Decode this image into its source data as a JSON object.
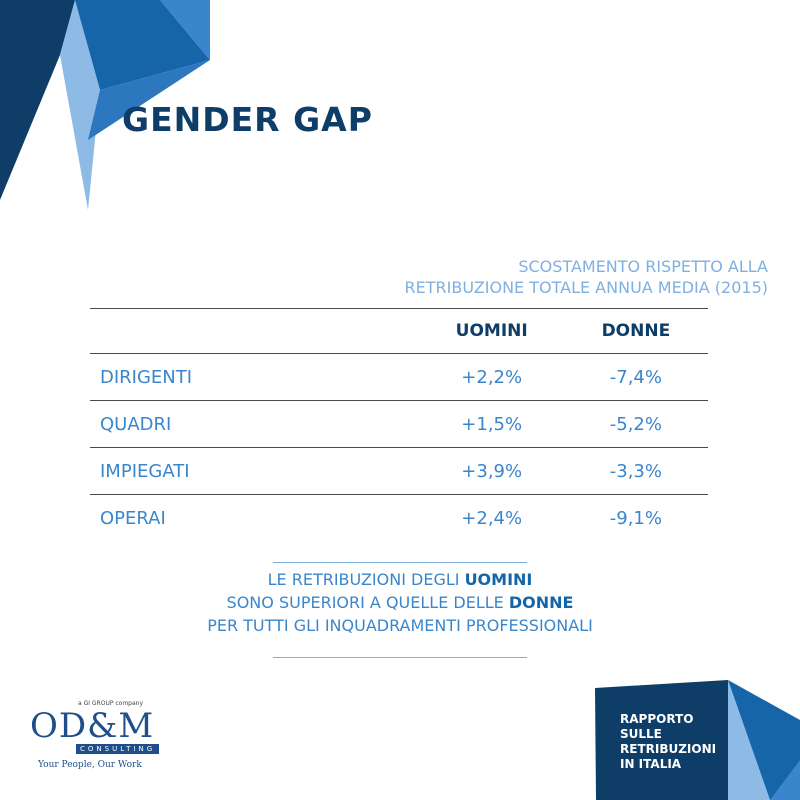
{
  "header": {
    "title": "GENDER GAP"
  },
  "table": {
    "caption_line1": "SCOSTAMENTO RISPETTO ALLA",
    "caption_line2": "RETRIBUZIONE TOTALE ANNUA MEDIA (2015)",
    "columns": [
      "",
      "UOMINI",
      "DONNE"
    ],
    "rows": [
      {
        "label": "DIRIGENTI",
        "uomini": "+2,2%",
        "donne": "-7,4%"
      },
      {
        "label": "QUADRI",
        "uomini": "+1,5%",
        "donne": "-5,2%"
      },
      {
        "label": "IMPIEGATI",
        "uomini": "+3,9%",
        "donne": "-3,3%"
      },
      {
        "label": "OPERAI",
        "uomini": "+2,4%",
        "donne": "-9,1%"
      }
    ]
  },
  "note": {
    "line1_prefix": "LE RETRIBUZIONI DEGLI ",
    "line1_bold": "UOMINI",
    "line2_prefix": "SONO SUPERIORI A QUELLE DELLE ",
    "line2_bold": "DONNE",
    "line3": "PER TUTTI GLI INQUADRAMENTI PROFESSIONALI"
  },
  "logo": {
    "tagline": "a GI GROUP company",
    "letters": "OD&M",
    "subtitle": "CONSULTING",
    "slogan": "Your People, Our Work"
  },
  "report": {
    "line1": "RAPPORTO",
    "line2": "SULLE",
    "line3": "RETRIBUZIONI",
    "line4": "IN ITALIA"
  },
  "colors": {
    "navy": "#0e3d67",
    "mid_blue": "#1565a8",
    "accent_blue": "#3a86cc",
    "light_blue": "#7fb0e0",
    "pale_blue": "#8dbbe6"
  }
}
